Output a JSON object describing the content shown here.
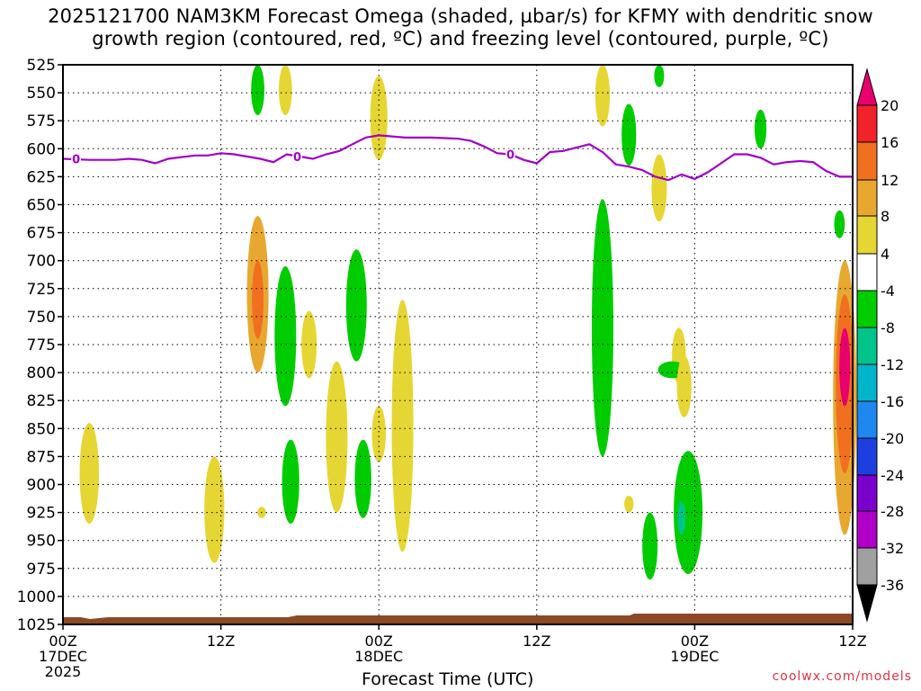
{
  "title": {
    "line1": "2025121700 NAM3KM Forecast Omega (shaded, µbar/s) for KFMY with dendritic snow",
    "line2": "growth region (contoured, red, ºC) and freezing level (contoured, purple, ºC)"
  },
  "credit": "coolwx.com/models",
  "chart_data": {
    "type": "heatmap",
    "xlabel": "Forecast Time (UTC)",
    "ylabel": "",
    "x_unit": "forecast hour",
    "xlim": [
      0,
      60
    ],
    "y_unit": "hPa",
    "ylim": [
      1025,
      525
    ],
    "y_ticks": [
      525,
      550,
      575,
      600,
      625,
      650,
      675,
      700,
      725,
      750,
      775,
      800,
      825,
      850,
      875,
      900,
      925,
      950,
      975,
      1000,
      1025
    ],
    "x_ticks": [
      {
        "hour": 0,
        "lines": [
          "00Z",
          "17DEC",
          "2025"
        ]
      },
      {
        "hour": 12,
        "lines": [
          "12Z"
        ]
      },
      {
        "hour": 24,
        "lines": [
          "00Z",
          "18DEC"
        ]
      },
      {
        "hour": 36,
        "lines": [
          "12Z"
        ]
      },
      {
        "hour": 48,
        "lines": [
          "00Z",
          "19DEC"
        ]
      },
      {
        "hour": 60,
        "lines": [
          "12Z"
        ]
      }
    ],
    "grid": true,
    "colorbar": {
      "unit": "µbar/s",
      "labels": [
        "20",
        "16",
        "12",
        "8",
        "4",
        "-4",
        "-8",
        "-12",
        "-16",
        "-20",
        "-24",
        "-28",
        "-32",
        "-36"
      ],
      "colors": [
        "#e8006e",
        "#f2222a",
        "#f07020",
        "#e8a830",
        "#e6d633",
        "#ffffff",
        "#00cc00",
        "#00c48a",
        "#00b4cc",
        "#1e88ee",
        "#1c40e0",
        "#7a00cc",
        "#b000c8",
        "#a0a0a0",
        "#000000"
      ]
    },
    "freezing_level": {
      "label": "0",
      "color": "#a000c8",
      "points": [
        [
          0,
          609
        ],
        [
          2,
          610
        ],
        [
          4,
          610
        ],
        [
          5,
          609
        ],
        [
          6,
          610
        ],
        [
          7,
          613
        ],
        [
          8,
          609
        ],
        [
          10,
          606
        ],
        [
          11,
          606
        ],
        [
          12,
          604
        ],
        [
          13,
          605
        ],
        [
          14,
          607
        ],
        [
          15,
          609
        ],
        [
          16,
          612
        ],
        [
          17,
          605
        ],
        [
          18,
          607
        ],
        [
          19,
          609
        ],
        [
          20,
          605
        ],
        [
          21,
          602
        ],
        [
          22,
          596
        ],
        [
          23,
          590
        ],
        [
          24,
          588
        ],
        [
          25,
          589
        ],
        [
          26,
          590
        ],
        [
          28,
          590
        ],
        [
          30,
          591
        ],
        [
          31,
          593
        ],
        [
          32,
          598
        ],
        [
          33,
          604
        ],
        [
          34,
          605
        ],
        [
          35,
          610
        ],
        [
          36,
          613
        ],
        [
          37,
          603
        ],
        [
          38,
          602
        ],
        [
          39,
          599
        ],
        [
          40,
          596
        ],
        [
          41,
          603
        ],
        [
          42,
          614
        ],
        [
          43,
          616
        ],
        [
          44,
          619
        ],
        [
          45,
          625
        ],
        [
          46,
          628
        ],
        [
          47,
          623
        ],
        [
          48,
          627
        ],
        [
          49,
          621
        ],
        [
          50,
          613
        ],
        [
          51,
          605
        ],
        [
          52,
          605
        ],
        [
          53,
          608
        ],
        [
          54,
          614
        ],
        [
          55,
          612
        ],
        [
          56,
          611
        ],
        [
          57,
          612
        ],
        [
          58,
          620
        ],
        [
          59,
          625
        ],
        [
          60,
          625
        ]
      ]
    },
    "omega_features": [
      {
        "hour": 2.0,
        "p_top": 845,
        "p_bot": 935,
        "value": 4
      },
      {
        "hour": 11.5,
        "p_top": 875,
        "p_bot": 970,
        "value": 4
      },
      {
        "hour": 14.8,
        "p_top": 660,
        "p_bot": 800,
        "value": 8
      },
      {
        "hour": 14.8,
        "p_top": 700,
        "p_bot": 770,
        "value": 12
      },
      {
        "hour": 14.8,
        "p_top": 525,
        "p_bot": 570,
        "value": -8
      },
      {
        "hour": 16.9,
        "p_top": 525,
        "p_bot": 570,
        "value": 4
      },
      {
        "hour": 16.9,
        "p_top": 705,
        "p_bot": 830,
        "value": -8
      },
      {
        "hour": 15.1,
        "p_top": 920,
        "p_bot": 930,
        "value": 4
      },
      {
        "hour": 17.3,
        "p_top": 860,
        "p_bot": 935,
        "value": -8
      },
      {
        "hour": 18.7,
        "p_top": 745,
        "p_bot": 805,
        "value": 4
      },
      {
        "hour": 20.8,
        "p_top": 790,
        "p_bot": 925,
        "value": 4
      },
      {
        "hour": 22.3,
        "p_top": 690,
        "p_bot": 790,
        "value": -8
      },
      {
        "hour": 22.8,
        "p_top": 860,
        "p_bot": 930,
        "value": -8
      },
      {
        "hour": 24.0,
        "p_top": 830,
        "p_bot": 880,
        "value": 4
      },
      {
        "hour": 24.0,
        "p_top": 535,
        "p_bot": 610,
        "value": 4
      },
      {
        "hour": 25.8,
        "p_top": 735,
        "p_bot": 960,
        "value": 4
      },
      {
        "hour": 41.0,
        "p_top": 525,
        "p_bot": 580,
        "value": 4
      },
      {
        "hour": 41.0,
        "p_top": 645,
        "p_bot": 875,
        "value": -8
      },
      {
        "hour": 43.0,
        "p_top": 560,
        "p_bot": 615,
        "value": -8
      },
      {
        "hour": 43.0,
        "p_top": 910,
        "p_bot": 925,
        "value": 4
      },
      {
        "hour": 45.3,
        "p_top": 525,
        "p_bot": 545,
        "value": -8
      },
      {
        "hour": 45.3,
        "p_top": 605,
        "p_bot": 665,
        "value": 4
      },
      {
        "hour": 44.6,
        "p_top": 925,
        "p_bot": 985,
        "value": -8
      },
      {
        "hour": 46.8,
        "p_top": 760,
        "p_bot": 810,
        "value": 4
      },
      {
        "hour": 46.3,
        "p_top": 790,
        "p_bot": 805,
        "value": -8
      },
      {
        "hour": 47.2,
        "p_top": 785,
        "p_bot": 840,
        "value": 4
      },
      {
        "hour": 47.5,
        "p_top": 870,
        "p_bot": 980,
        "value": -8
      },
      {
        "hour": 47.0,
        "p_top": 915,
        "p_bot": 945,
        "value": -12
      },
      {
        "hour": 53.0,
        "p_top": 565,
        "p_bot": 600,
        "value": -8
      },
      {
        "hour": 59.0,
        "p_top": 655,
        "p_bot": 680,
        "value": -8
      },
      {
        "hour": 59.4,
        "p_top": 700,
        "p_bot": 945,
        "value": 8
      },
      {
        "hour": 59.4,
        "p_top": 730,
        "p_bot": 890,
        "value": 12
      },
      {
        "hour": 59.4,
        "p_top": 760,
        "p_bot": 830,
        "value": 20
      }
    ]
  }
}
